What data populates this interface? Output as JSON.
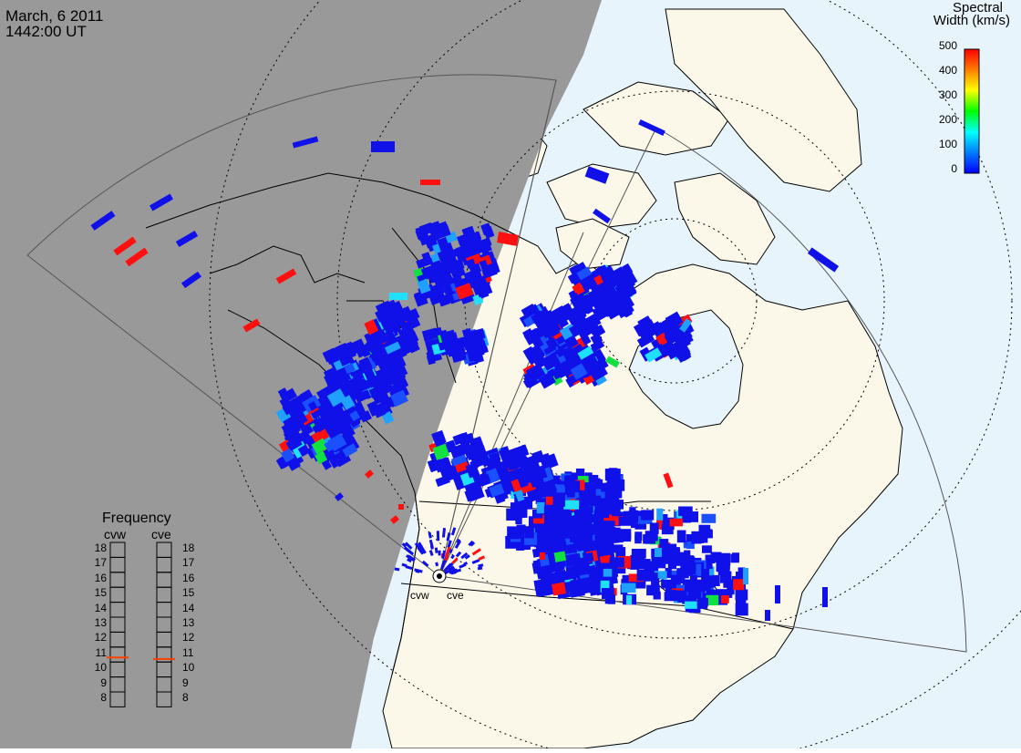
{
  "header": {
    "date": "March, 6 2011",
    "time": "1442:00 UT"
  },
  "colorbar": {
    "title_line1": "Spectral",
    "title_line2": "Width (km/s)",
    "ticks": [
      "500",
      "400",
      "300",
      "200",
      "100",
      "0"
    ],
    "range": [
      0,
      500
    ],
    "colors": [
      "#0000ff",
      "#0080ff",
      "#00ffff",
      "#00ff00",
      "#ffff00",
      "#ff8000",
      "#ff0000"
    ]
  },
  "frequency": {
    "title": "Frequency",
    "stations": [
      {
        "code": "cvw",
        "value": 10.8
      },
      {
        "code": "cve",
        "value": 10.7
      }
    ],
    "scale_min": 8,
    "scale_max": 18,
    "scale_numbers": [
      "18",
      "17",
      "16",
      "15",
      "14",
      "13",
      "12",
      "11",
      "10",
      "9",
      "8"
    ]
  },
  "sites": {
    "west": "cvw",
    "east": "cve"
  },
  "map_colors": {
    "ocean": "#e8f4fb",
    "land": "#fbf8ea",
    "night": "#999999",
    "coast": "#000000"
  }
}
